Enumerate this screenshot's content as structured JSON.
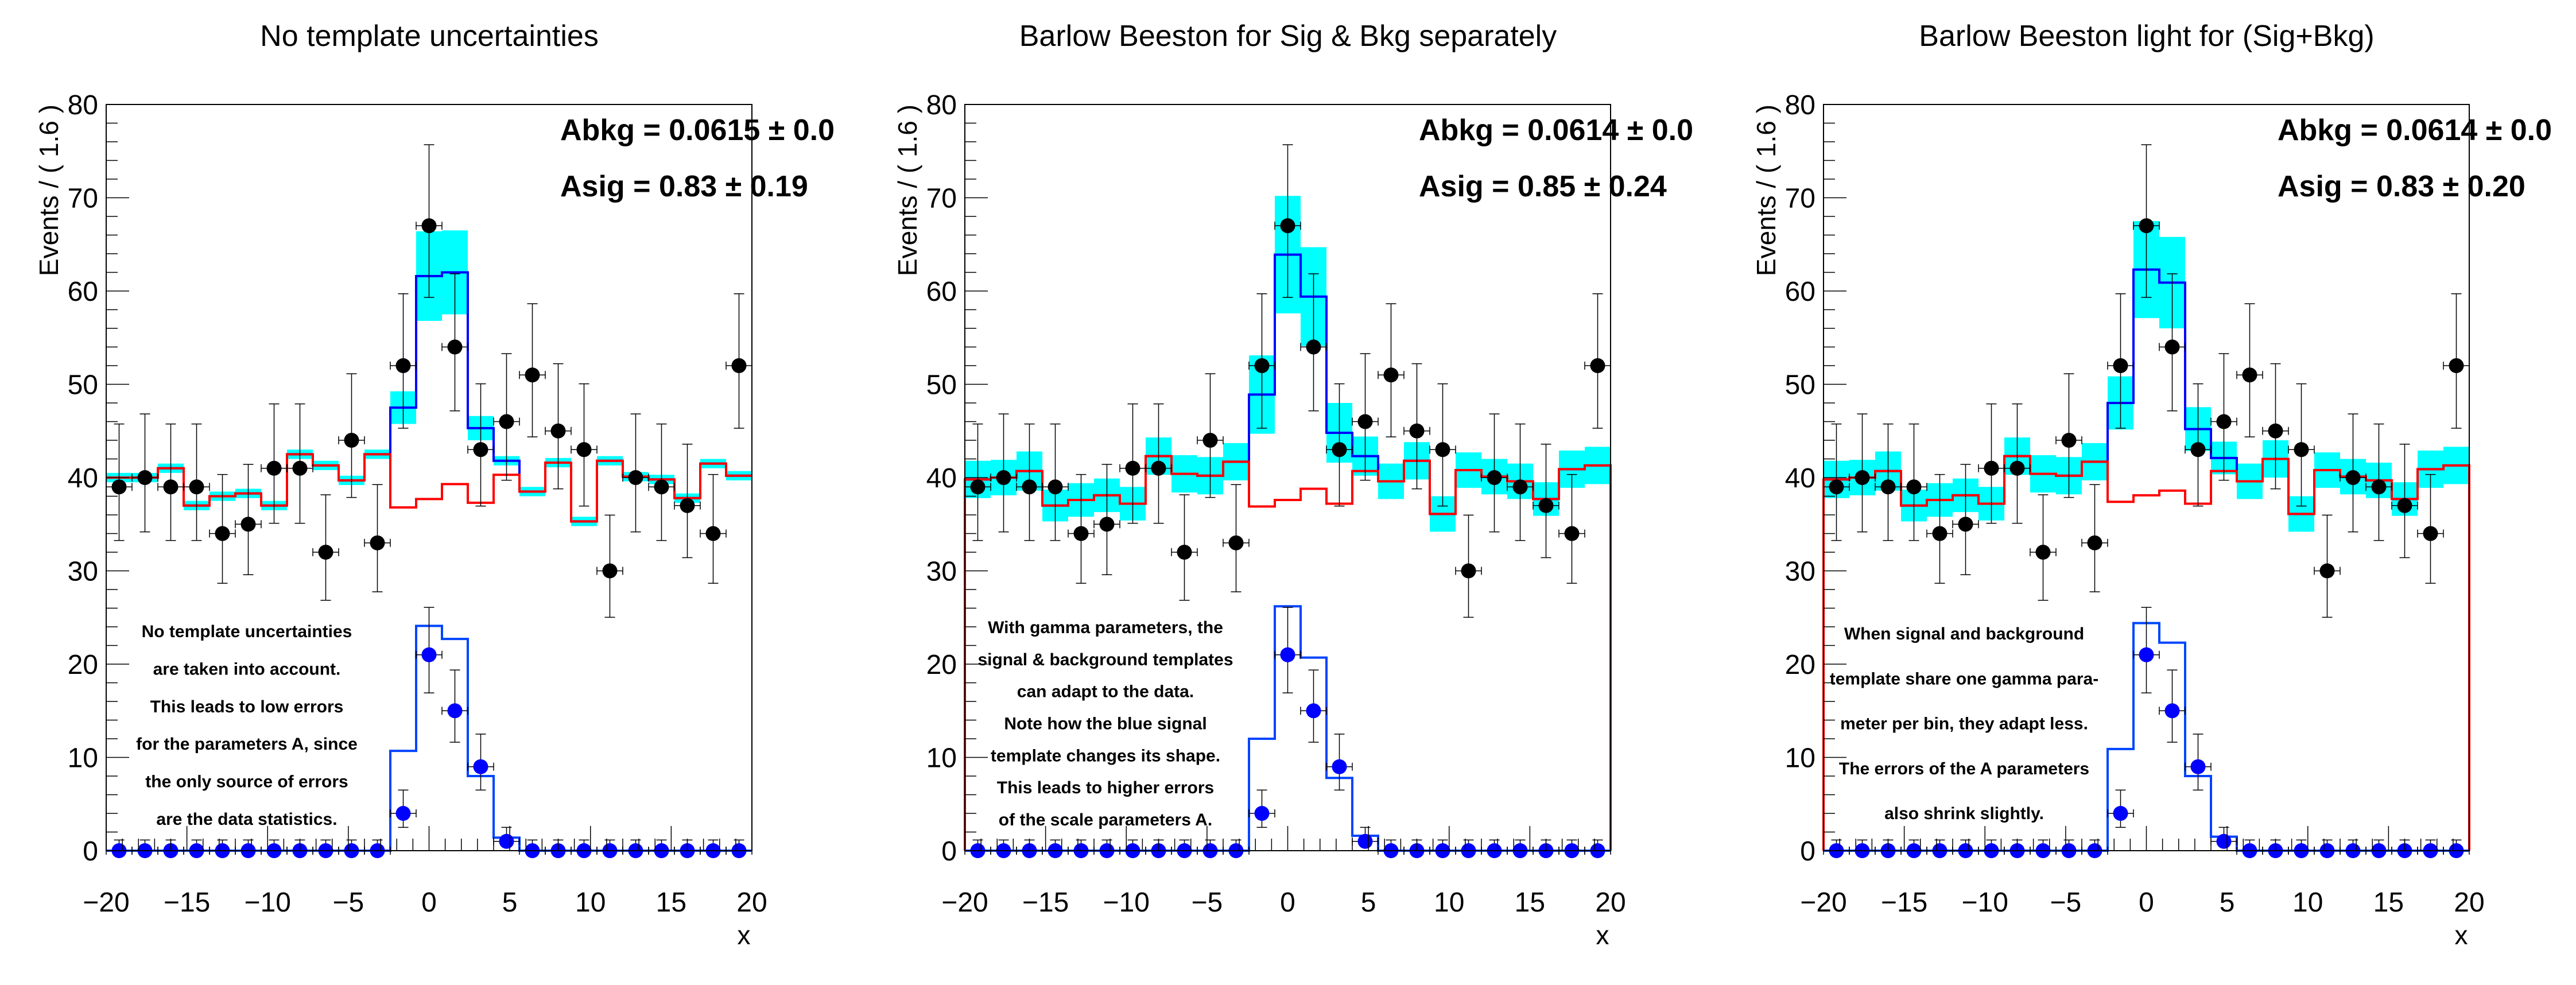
{
  "colors": {
    "data": "#000000",
    "signal_data": "#0000ff",
    "total_model": "#0000ff",
    "background_model": "#ff0000",
    "band": "#00ffff",
    "signal_template": "#0044ff"
  },
  "chart_data": [
    {
      "type": "histogram",
      "title": "No template uncertainties",
      "ylabel": "Events / ( 1.6 )",
      "xlabel": "x",
      "xlim": [
        -20,
        20
      ],
      "ylim": [
        0,
        80
      ],
      "x_ticks": [
        "−20",
        "−15",
        "−10",
        "−5",
        "0",
        "5",
        "10",
        "15",
        "20"
      ],
      "y_ticks": [
        "0",
        "10",
        "20",
        "30",
        "40",
        "50",
        "60",
        "70",
        "80"
      ],
      "stats": [
        "Abkg =  0.0615 ± 0.0",
        "Asig =  0.83 ± 0.19"
      ],
      "caption": [
        "No template uncertainties",
        "are taken into account.",
        "This leads to low errors",
        "for the parameters A, since",
        "the only source of errors",
        "are the data statistics."
      ],
      "bin_centers": [
        -19.2,
        -17.6,
        -16,
        -14.4,
        -12.8,
        -11.2,
        -9.6,
        -8,
        -6.4,
        -4.8,
        -3.2,
        -1.6,
        0,
        1.6,
        3.2,
        4.8,
        6.4,
        8,
        9.6,
        11.2,
        12.8,
        14.4,
        16,
        17.6,
        19.2
      ],
      "data": [
        39,
        40,
        39,
        39,
        34,
        35,
        41,
        41,
        32,
        44,
        33,
        52,
        67,
        54,
        43,
        46,
        51,
        45,
        43,
        30,
        40,
        39,
        37,
        34,
        52
      ],
      "signal_data": [
        0,
        0,
        0,
        0,
        0,
        0,
        0,
        0,
        0,
        0,
        0,
        4,
        21,
        15,
        9,
        1,
        0,
        0,
        0,
        0,
        0,
        0,
        0,
        0,
        0
      ],
      "total_model": [
        40,
        40,
        41,
        37,
        38,
        38.3,
        37,
        42.5,
        41.3,
        39.7,
        42.5,
        47.5,
        61.6,
        62,
        45.3,
        41.8,
        38.5,
        41.6,
        35.3,
        41.8,
        40.1,
        39.8,
        37.8,
        41.5,
        40.2
      ],
      "total_band_error": [
        0.5,
        0.5,
        0.5,
        0.5,
        0.5,
        0.5,
        0.5,
        0.5,
        0.5,
        0.5,
        0.5,
        1.75,
        4.8,
        4.5,
        1.3,
        0.5,
        0.5,
        0.5,
        0.5,
        0.5,
        0.5,
        0.5,
        0.5,
        0.5,
        0.5
      ],
      "background_model": [
        40,
        40,
        41,
        37,
        38,
        38.3,
        37,
        42.5,
        41.3,
        39.7,
        42.5,
        36.8,
        37.7,
        39.3,
        37.3,
        40.3,
        38.5,
        41.6,
        35.3,
        41.8,
        40.1,
        39.8,
        37.8,
        41.5,
        40.2
      ],
      "background_drops_at_edges": false,
      "signal_template": [
        0,
        0,
        0,
        0,
        0,
        0,
        0,
        0,
        0,
        0,
        0,
        10.7,
        24.1,
        22.7,
        8,
        1.4,
        0,
        0,
        0,
        0,
        0,
        0,
        0,
        0,
        0
      ]
    },
    {
      "type": "histogram",
      "title": "Barlow Beeston for Sig & Bkg separately",
      "ylabel": "Events / ( 1.6 )",
      "xlabel": "x",
      "xlim": [
        -20,
        20
      ],
      "ylim": [
        0,
        80
      ],
      "x_ticks": [
        "−20",
        "−15",
        "−10",
        "−5",
        "0",
        "5",
        "10",
        "15",
        "20"
      ],
      "y_ticks": [
        "0",
        "10",
        "20",
        "30",
        "40",
        "50",
        "60",
        "70",
        "80"
      ],
      "stats": [
        "Abkg =  0.0614 ± 0.0",
        "Asig =  0.85 ± 0.24"
      ],
      "caption": [
        "With gamma parameters, the",
        "signal & background templates",
        "can adapt to the data.",
        "Note how the blue signal",
        "template changes its shape.",
        "This leads to higher errors",
        "of the scale parameters A."
      ],
      "bin_centers": [
        -19.2,
        -17.6,
        -16,
        -14.4,
        -12.8,
        -11.2,
        -9.6,
        -8,
        -6.4,
        -4.8,
        -3.2,
        -1.6,
        0,
        1.6,
        3.2,
        4.8,
        6.4,
        8,
        9.6,
        11.2,
        12.8,
        14.4,
        16,
        17.6,
        19.2
      ],
      "data": [
        39,
        40,
        39,
        39,
        34,
        35,
        41,
        41,
        32,
        44,
        33,
        52,
        67,
        54,
        43,
        46,
        51,
        45,
        43,
        30,
        40,
        39,
        37,
        34,
        52
      ],
      "signal_data": [
        0,
        0,
        0,
        0,
        0,
        0,
        0,
        0,
        0,
        0,
        0,
        4,
        21,
        15,
        9,
        1,
        0,
        0,
        0,
        0,
        0,
        0,
        0,
        0,
        0
      ],
      "total_model": [
        39.8,
        40,
        40.7,
        37,
        37.6,
        38.1,
        37.2,
        42.3,
        40.4,
        40.2,
        41.7,
        48.9,
        63.9,
        59.4,
        44.8,
        42.3,
        39.6,
        41.8,
        36.1,
        40.8,
        40.1,
        39.6,
        37.7,
        40.9,
        41.3
      ],
      "total_band_error": [
        2,
        1.9,
        2.1,
        1.7,
        1.8,
        1.8,
        1.8,
        2,
        2,
        2,
        2,
        4.2,
        6.3,
        5.3,
        3.2,
        2.1,
        1.9,
        2,
        1.9,
        1.9,
        1.9,
        1.9,
        1.8,
        2,
        2
      ],
      "background_model": [
        39.8,
        40,
        40.7,
        37,
        37.6,
        38.1,
        37.2,
        42.3,
        40.4,
        40.2,
        41.7,
        36.9,
        37.6,
        38.8,
        37.2,
        40.7,
        39.6,
        41.8,
        36.1,
        40.8,
        40.1,
        39.6,
        37.7,
        40.9,
        41.3
      ],
      "background_drops_at_edges": true,
      "signal_template": [
        0,
        0,
        0,
        0,
        0,
        0,
        0,
        0,
        0,
        0,
        0,
        12,
        26.2,
        20.7,
        7.8,
        1.6,
        0,
        0,
        0,
        0,
        0,
        0,
        0,
        0,
        0
      ]
    },
    {
      "type": "histogram",
      "title": "Barlow Beeston light for (Sig+Bkg)",
      "ylabel": "Events / ( 1.6 )",
      "xlabel": "x",
      "xlim": [
        -20,
        20
      ],
      "ylim": [
        0,
        80
      ],
      "x_ticks": [
        "−20",
        "−15",
        "−10",
        "−5",
        "0",
        "5",
        "10",
        "15",
        "20"
      ],
      "y_ticks": [
        "0",
        "10",
        "20",
        "30",
        "40",
        "50",
        "60",
        "70",
        "80"
      ],
      "stats": [
        "Abkg =  0.0614 ± 0.0",
        "Asig =  0.83 ± 0.20"
      ],
      "caption": [
        "When signal and background",
        "template share one gamma para-",
        "meter per bin, they adapt less.",
        "The errors of the A parameters",
        "also shrink slightly."
      ],
      "bin_centers": [
        -19.2,
        -17.6,
        -16,
        -14.4,
        -12.8,
        -11.2,
        -9.6,
        -8,
        -6.4,
        -4.8,
        -3.2,
        -1.6,
        0,
        1.6,
        3.2,
        4.8,
        6.4,
        8,
        9.6,
        11.2,
        12.8,
        14.4,
        16,
        17.6,
        19.2
      ],
      "data": [
        39,
        40,
        39,
        39,
        34,
        35,
        41,
        41,
        32,
        44,
        33,
        52,
        67,
        54,
        43,
        46,
        51,
        45,
        43,
        30,
        40,
        39,
        37,
        34,
        52
      ],
      "signal_data": [
        0,
        0,
        0,
        0,
        0,
        0,
        0,
        0,
        0,
        0,
        0,
        4,
        21,
        15,
        9,
        1,
        0,
        0,
        0,
        0,
        0,
        0,
        0,
        0,
        0
      ],
      "total_model": [
        39.8,
        40,
        40.7,
        37,
        37.6,
        38.1,
        37.2,
        42.3,
        40.4,
        40.2,
        41.7,
        48,
        62.3,
        60.9,
        45.2,
        42.1,
        39.6,
        42,
        36.1,
        40.8,
        40.1,
        39.7,
        37.7,
        40.9,
        41.3
      ],
      "total_band_error": [
        2,
        1.9,
        2.1,
        1.7,
        1.8,
        1.8,
        1.8,
        2,
        2,
        2,
        2,
        2.85,
        5.2,
        4.9,
        2.35,
        1.75,
        1.9,
        2,
        1.9,
        1.9,
        1.9,
        1.9,
        1.8,
        2,
        2
      ],
      "background_model": [
        39.8,
        40,
        40.7,
        37,
        37.6,
        38.1,
        37.2,
        42.3,
        40.4,
        40.2,
        41.7,
        37.4,
        38.1,
        38.6,
        37.2,
        40.7,
        39.6,
        42,
        36.1,
        40.8,
        40.1,
        39.7,
        37.7,
        40.9,
        41.3
      ],
      "background_drops_at_edges": true,
      "signal_template": [
        0,
        0,
        0,
        0,
        0,
        0,
        0,
        0,
        0,
        0,
        0,
        10.9,
        24.4,
        22.3,
        8,
        1.5,
        0,
        0,
        0,
        0,
        0,
        0,
        0,
        0,
        0
      ]
    }
  ]
}
